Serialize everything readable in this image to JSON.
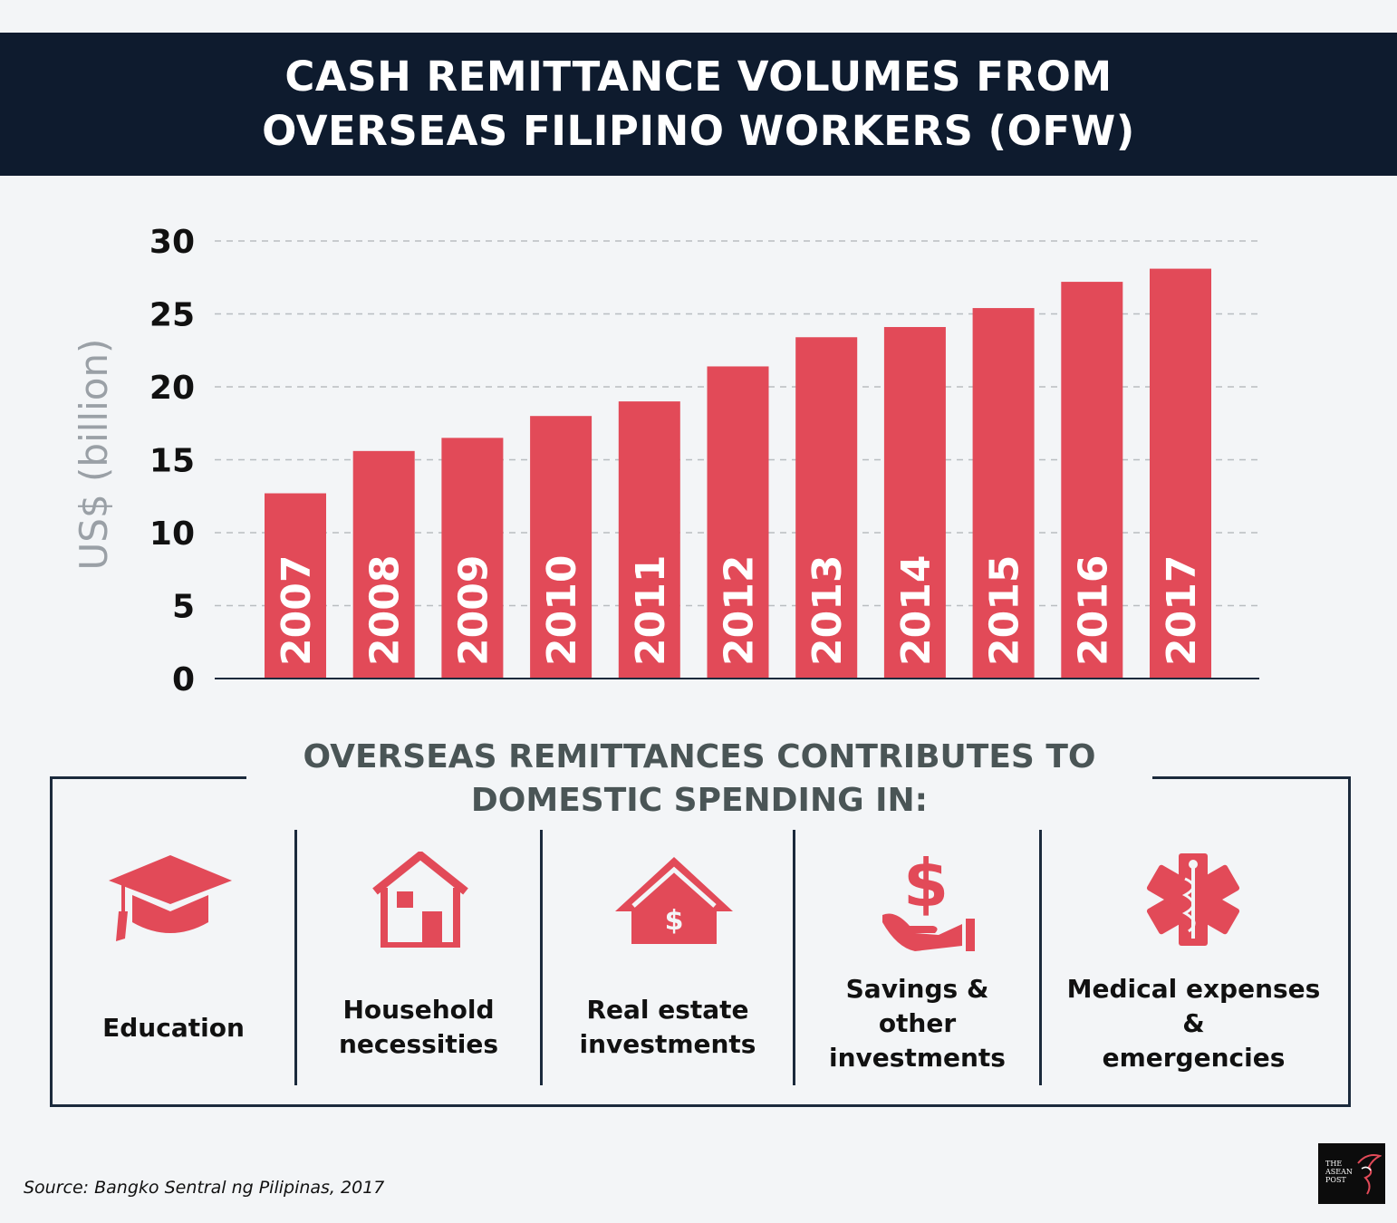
{
  "title": {
    "line1": "CASH REMITTANCE VOLUMES FROM",
    "line2": "OVERSEAS FILIPINO WORKERS (OFW)"
  },
  "chart_data": {
    "type": "bar",
    "title": "CASH REMITTANCE VOLUMES FROM OVERSEAS FILIPINO WORKERS (OFW)",
    "xlabel": "",
    "ylabel": "US$ (billion)",
    "categories": [
      "2007",
      "2008",
      "2009",
      "2010",
      "2011",
      "2012",
      "2013",
      "2014",
      "2015",
      "2016",
      "2017"
    ],
    "values": [
      12.7,
      15.6,
      16.5,
      18.0,
      19.0,
      21.4,
      23.4,
      24.1,
      25.4,
      27.2,
      28.1
    ],
    "ylim": [
      0,
      30
    ],
    "yticks": [
      "0",
      "5",
      "10",
      "15",
      "20",
      "25",
      "30"
    ],
    "grid": true,
    "bar_color": "#e24a58"
  },
  "spending": {
    "heading_line1": "OVERSEAS REMITTANCES CONTRIBUTES TO",
    "heading_line2": "DOMESTIC SPENDING IN:",
    "items": [
      {
        "icon": "graduation-cap-icon",
        "lines": [
          "Education"
        ]
      },
      {
        "icon": "house-icon",
        "lines": [
          "Household",
          "necessities"
        ]
      },
      {
        "icon": "real-estate-icon",
        "lines": [
          "Real estate",
          "investments"
        ]
      },
      {
        "icon": "savings-hand-icon",
        "lines": [
          "Savings &",
          "other",
          "investments"
        ]
      },
      {
        "icon": "medical-star-icon",
        "lines": [
          "Medical expenses",
          "&",
          "emergencies"
        ]
      }
    ]
  },
  "source": "Source: Bangko Sentral ng Pilipinas, 2017",
  "logo": {
    "line1": "THE",
    "line2": "ASEAN",
    "line3": "POST"
  },
  "colors": {
    "accent": "#e24a58",
    "navy": "#0e1b2e",
    "background": "#f3f5f7"
  }
}
